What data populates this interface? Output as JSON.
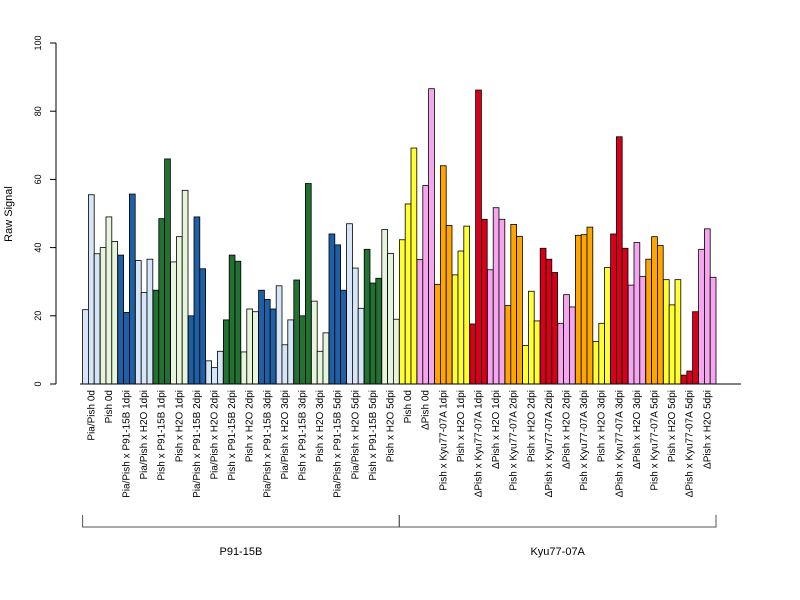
{
  "chart_data": {
    "type": "bar",
    "ylabel": "Raw Signal",
    "ylim": [
      0,
      100
    ],
    "yticks": [
      0,
      20,
      40,
      60,
      80,
      100
    ],
    "bars_per_category": 3,
    "categories": [
      {
        "label": "Pia/Pish 0d",
        "values": [
          21.8,
          55.5,
          38.2
        ],
        "color": "#d6e6f7"
      },
      {
        "label": "Pish 0d",
        "values": [
          40.0,
          49.0,
          41.8
        ],
        "color": "#e6f5dc"
      },
      {
        "label": "Pia/Pish x P91-15B 1dpi",
        "values": [
          37.8,
          21.0,
          55.7
        ],
        "color": "#1f5fa6"
      },
      {
        "label": "Pia/Pish x H2O 1dpi",
        "values": [
          36.2,
          26.8,
          36.6
        ],
        "color": "#d6e6f7"
      },
      {
        "label": "Pish x P91-15B 1dpi",
        "values": [
          27.5,
          48.5,
          66.0
        ],
        "color": "#237033"
      },
      {
        "label": "Pish x H2O 1dpi",
        "values": [
          35.8,
          43.2,
          56.8
        ],
        "color": "#e6f5dc"
      },
      {
        "label": "Pia/Pish x P91-15B 2dpi",
        "values": [
          20.0,
          49.0,
          33.8
        ],
        "color": "#1f5fa6"
      },
      {
        "label": "Pia/Pish x H2O 2dpi",
        "values": [
          6.8,
          4.8,
          9.6
        ],
        "color": "#d6e6f7"
      },
      {
        "label": "Pish x P91-15B 2dpi",
        "values": [
          18.8,
          37.8,
          36.0
        ],
        "color": "#237033"
      },
      {
        "label": "Pish x H2O 2dpi",
        "values": [
          9.4,
          22.0,
          21.2
        ],
        "color": "#e6f5dc"
      },
      {
        "label": "Pia/Pish x P91-15B 3dpi",
        "values": [
          27.5,
          24.8,
          22.0
        ],
        "color": "#1f5fa6"
      },
      {
        "label": "Pia/Pish x H2O 3dpi",
        "values": [
          28.8,
          11.5,
          18.8
        ],
        "color": "#d6e6f7"
      },
      {
        "label": "Pish x P91-15B 3dpi",
        "values": [
          30.5,
          20.0,
          58.8
        ],
        "color": "#237033"
      },
      {
        "label": "Pish x H2O 3dpi",
        "values": [
          24.3,
          9.6,
          15.0
        ],
        "color": "#e6f5dc"
      },
      {
        "label": "Pia/Pish x P91-15B 5dpi",
        "values": [
          44.0,
          40.8,
          27.5
        ],
        "color": "#1f5fa6"
      },
      {
        "label": "Pia/Pish x H2O 5dpi",
        "values": [
          47.0,
          34.0,
          22.2
        ],
        "color": "#d6e6f7"
      },
      {
        "label": "Pish x P91-15B 5dpi",
        "values": [
          39.5,
          29.6,
          31.0
        ],
        "color": "#237033"
      },
      {
        "label": "Pish x H2O 5dpi",
        "values": [
          45.3,
          38.3,
          19.0
        ],
        "color": "#e6f5dc"
      },
      {
        "label": "Pish 0d",
        "values": [
          42.3,
          52.8,
          69.2
        ],
        "color": "#ffff33"
      },
      {
        "label": "ΔPish 0d",
        "values": [
          36.5,
          58.2,
          86.6
        ],
        "color": "#f5a6ee"
      },
      {
        "label": "Pish x Kyu77-07A 1dpi",
        "values": [
          29.2,
          64.0,
          46.5
        ],
        "color": "#ffa500"
      },
      {
        "label": "Pish x H2O 1dpi",
        "values": [
          32.0,
          39.0,
          46.3
        ],
        "color": "#ffff33"
      },
      {
        "label": "ΔPish x Kyu77-07A 1dpi",
        "values": [
          17.6,
          86.2,
          48.3
        ],
        "color": "#d7001a"
      },
      {
        "label": "ΔPish x H2O 1dpi",
        "values": [
          33.5,
          51.7,
          48.3
        ],
        "color": "#f5a6ee"
      },
      {
        "label": "Pish x Kyu77-07A 2dpi",
        "values": [
          23.0,
          46.8,
          43.3
        ],
        "color": "#ffa500"
      },
      {
        "label": "Pish x H2O 2dpi",
        "values": [
          11.3,
          27.2,
          18.5
        ],
        "color": "#ffff33"
      },
      {
        "label": "ΔPish x Kyu77-07A 2dpi",
        "values": [
          39.8,
          36.6,
          32.7
        ],
        "color": "#d7001a"
      },
      {
        "label": "ΔPish x H2O 2dpi",
        "values": [
          17.8,
          26.2,
          22.6
        ],
        "color": "#f5a6ee"
      },
      {
        "label": "Pish x Kyu77-07A 3dpi",
        "values": [
          43.6,
          43.8,
          46.0
        ],
        "color": "#ffa500"
      },
      {
        "label": "Pish x H2O 3dpi",
        "values": [
          12.5,
          17.8,
          34.2
        ],
        "color": "#ffff33"
      },
      {
        "label": "ΔPish x Kyu77-07A 3dpi",
        "values": [
          44.0,
          72.5,
          39.8
        ],
        "color": "#d7001a"
      },
      {
        "label": "ΔPish x H2O 3dpi",
        "values": [
          29.0,
          41.5,
          31.5
        ],
        "color": "#f5a6ee"
      },
      {
        "label": "Pish x Kyu77-07A 5dpi",
        "values": [
          36.6,
          43.2,
          40.6
        ],
        "color": "#ffa500"
      },
      {
        "label": "Pish x H2O 5dpi",
        "values": [
          30.6,
          23.2,
          30.6
        ],
        "color": "#ffff33"
      },
      {
        "label": "ΔPish x Kyu77-07A 5dpi",
        "values": [
          2.6,
          3.8,
          21.2
        ],
        "color": "#d7001a"
      },
      {
        "label": "ΔPish x H2O 5dpi",
        "values": [
          39.5,
          45.5,
          31.3
        ],
        "color": "#f5a6ee"
      }
    ],
    "groups": [
      {
        "label": "P91-15B",
        "start": 0,
        "end": 17
      },
      {
        "label": "Kyu77-07A",
        "start": 18,
        "end": 35
      }
    ]
  }
}
